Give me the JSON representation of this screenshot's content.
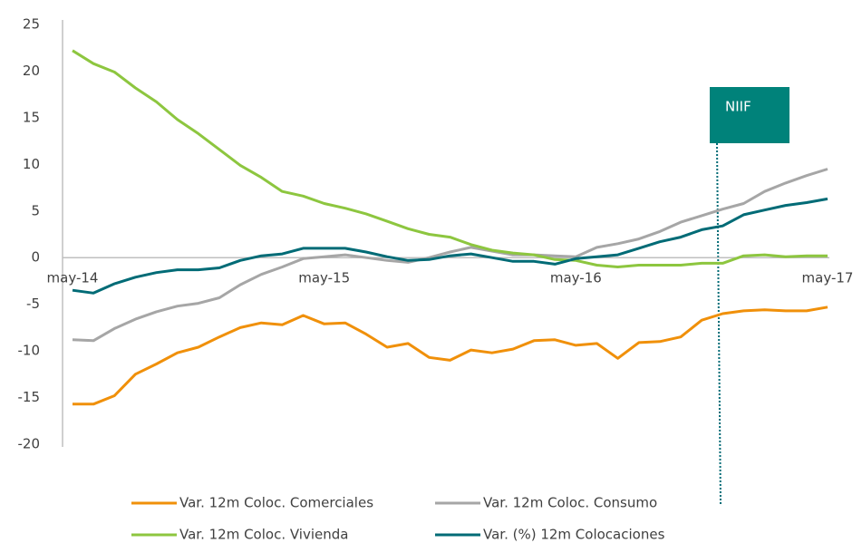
{
  "chart_data": {
    "type": "line",
    "categories": [
      "may-14",
      null,
      null,
      null,
      null,
      null,
      null,
      null,
      null,
      null,
      null,
      null,
      "may-15",
      null,
      null,
      null,
      null,
      null,
      null,
      null,
      null,
      null,
      null,
      null,
      "may-16",
      null,
      null,
      null,
      null,
      null,
      null,
      null,
      null,
      null,
      null,
      null,
      "may-17"
    ],
    "series": [
      {
        "name": "Var. 12m Coloc. Comerciales",
        "color": "#f0900a",
        "values": [
          -15.7,
          -15.7,
          -14.8,
          -12.5,
          -11.4,
          -10.2,
          -9.6,
          -8.5,
          -7.5,
          -7.0,
          -7.2,
          -6.2,
          -7.1,
          -7.0,
          -8.2,
          -9.6,
          -9.2,
          -10.7,
          -11.0,
          -9.9,
          -10.2,
          -9.8,
          -8.9,
          -8.8,
          -9.4,
          -9.2,
          -10.8,
          -9.1,
          -9.0,
          -8.5,
          -6.7,
          -6.0,
          -5.7,
          -5.6,
          -5.7,
          -5.7,
          -5.3
        ]
      },
      {
        "name": "Var. 12m Coloc. Consumo",
        "color": "#a6a6a6",
        "values": [
          -8.8,
          -8.9,
          -7.6,
          -6.6,
          -5.8,
          -5.2,
          -4.9,
          -4.3,
          -2.9,
          -1.8,
          -1.0,
          -0.1,
          0.1,
          0.3,
          0.0,
          -0.3,
          -0.5,
          0.0,
          0.6,
          1.1,
          0.7,
          0.3,
          0.3,
          0.2,
          0.1,
          1.1,
          1.5,
          2.0,
          2.8,
          3.8,
          4.5,
          5.2,
          5.8,
          7.1,
          8.0,
          8.8,
          9.5
        ]
      },
      {
        "name": "Var. 12m Coloc. Vivienda",
        "color": "#8dc63f",
        "values": [
          22.2,
          20.8,
          19.9,
          18.2,
          16.7,
          14.8,
          13.3,
          11.6,
          9.9,
          8.6,
          7.1,
          6.6,
          5.8,
          5.3,
          4.7,
          3.9,
          3.1,
          2.5,
          2.2,
          1.4,
          0.8,
          0.5,
          0.3,
          -0.2,
          -0.3,
          -0.8,
          -1.0,
          -0.8,
          -0.8,
          -0.8,
          -0.6,
          -0.6,
          0.2,
          0.3,
          0.1,
          0.2,
          0.2
        ]
      },
      {
        "name": "Var. (%) 12m Colocaciones",
        "color": "#006b76",
        "values": [
          -3.5,
          -3.8,
          -2.8,
          -2.1,
          -1.6,
          -1.3,
          -1.3,
          -1.1,
          -0.3,
          0.2,
          0.4,
          1.0,
          1.0,
          1.0,
          0.6,
          0.1,
          -0.3,
          -0.2,
          0.2,
          0.4,
          0.0,
          -0.4,
          -0.4,
          -0.7,
          -0.1,
          0.1,
          0.3,
          1.0,
          1.7,
          2.2,
          3.0,
          3.4,
          4.6,
          5.1,
          5.6,
          5.9,
          6.3
        ]
      }
    ],
    "ylim": [
      -20,
      25
    ],
    "yticks": [
      -20,
      -15,
      -10,
      -5,
      0,
      5,
      10,
      15,
      20,
      25
    ],
    "annotation": {
      "text": "NIIF",
      "color": "#00827a"
    }
  }
}
